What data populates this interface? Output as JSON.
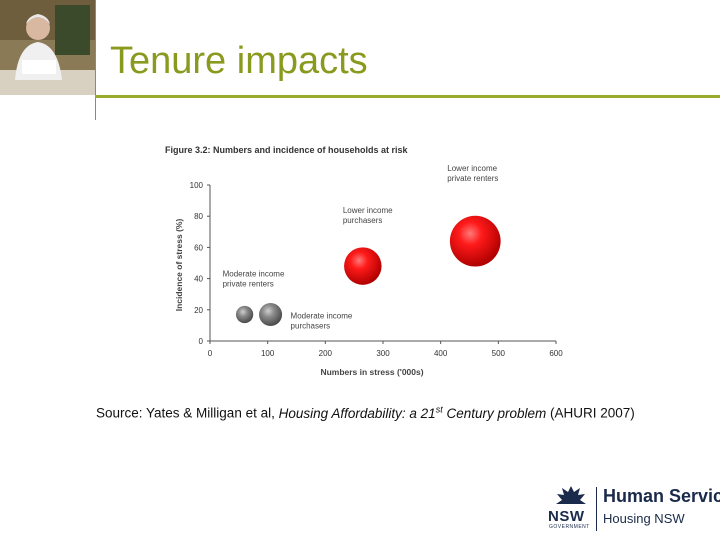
{
  "slide": {
    "title": "Tenure impacts",
    "source": {
      "prefix": "Source: Yates & Milligan et al, ",
      "title_part1": "Housing Affordability: a 21",
      "title_sup": "st",
      "title_part2": " Century problem",
      "suffix": " (AHURI 2007)"
    },
    "logo": {
      "line1": "Human Services",
      "line2": "Housing NSW",
      "mark": "NSW",
      "mark_sub": "GOVERNMENT"
    }
  },
  "chart_data": {
    "type": "bubble",
    "title": "Figure 3.2: Numbers and incidence of households at risk",
    "xlabel": "Numbers in stress ('000s)",
    "ylabel": "Incidence of stress (%)",
    "xlim": [
      0,
      600
    ],
    "ylim": [
      0,
      100
    ],
    "xticks": [
      0,
      100,
      200,
      300,
      400,
      500,
      600
    ],
    "yticks": [
      0,
      20,
      40,
      60,
      80,
      100
    ],
    "grid": false,
    "legend": "none",
    "series": [
      {
        "name": "Moderate income private renters",
        "x": 60,
        "y": 17,
        "size": 30,
        "color": "#7a7a7a",
        "label_lines": [
          "Moderate income",
          "private renters"
        ]
      },
      {
        "name": "Moderate income purchasers",
        "x": 105,
        "y": 17,
        "size": 40,
        "color": "#7a7a7a",
        "label_lines": [
          "Moderate income",
          "purchasers"
        ]
      },
      {
        "name": "Lower income purchasers",
        "x": 265,
        "y": 48,
        "size": 65,
        "color": "#e00000",
        "label_lines": [
          "Lower income",
          "purchasers"
        ]
      },
      {
        "name": "Lower income private renters",
        "x": 460,
        "y": 64,
        "size": 88,
        "color": "#e00000",
        "label_lines": [
          "Lower income",
          "private renters"
        ]
      }
    ]
  }
}
